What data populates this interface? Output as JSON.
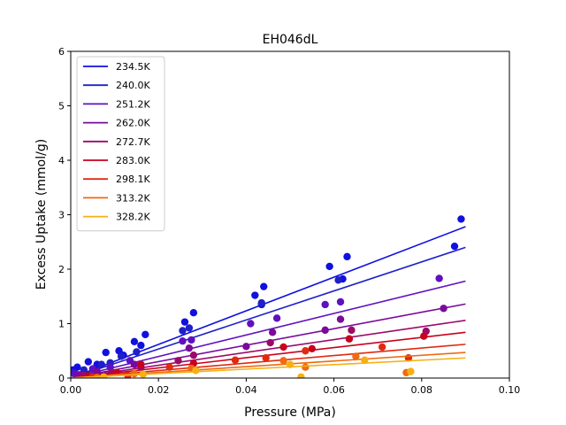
{
  "chart_data": {
    "type": "scatter",
    "title": "EH046dL",
    "xlabel": "Pressure (MPa)",
    "ylabel": "Excess Uptake (mmol/g)",
    "xlim": [
      0,
      0.1
    ],
    "ylim": [
      0,
      6
    ],
    "xticks": [
      0,
      0.02,
      0.04,
      0.06,
      0.08,
      0.1
    ],
    "xtick_labels": [
      "0.00",
      "0.02",
      "0.04",
      "0.06",
      "0.08",
      "0.10"
    ],
    "yticks": [
      0,
      1,
      2,
      3,
      4,
      5,
      6
    ],
    "ytick_labels": [
      "0",
      "1",
      "2",
      "3",
      "4",
      "5",
      "6"
    ],
    "grid": false,
    "legend_position": "top-left",
    "series": [
      {
        "name": "234.5K",
        "color": "#1010e0",
        "fit_end": [
          0.09,
          2.78
        ],
        "points": [
          [
            0.0005,
            0.15
          ],
          [
            0.0015,
            0.2
          ],
          [
            0.004,
            0.3
          ],
          [
            0.006,
            0.25
          ],
          [
            0.008,
            0.47
          ],
          [
            0.011,
            0.5
          ],
          [
            0.012,
            0.42
          ],
          [
            0.0145,
            0.67
          ],
          [
            0.016,
            0.6
          ],
          [
            0.017,
            0.8
          ],
          [
            0.026,
            1.03
          ],
          [
            0.028,
            1.2
          ],
          [
            0.042,
            1.52
          ],
          [
            0.0435,
            1.35
          ],
          [
            0.044,
            1.68
          ],
          [
            0.059,
            2.05
          ],
          [
            0.062,
            1.82
          ],
          [
            0.063,
            2.23
          ],
          [
            0.0875,
            2.42
          ],
          [
            0.089,
            2.92
          ]
        ]
      },
      {
        "name": "240.0K",
        "color": "#2020c8",
        "fit_end": [
          0.09,
          2.4
        ],
        "points": [
          [
            0.0005,
            0.1
          ],
          [
            0.003,
            0.15
          ],
          [
            0.007,
            0.25
          ],
          [
            0.009,
            0.28
          ],
          [
            0.0115,
            0.4
          ],
          [
            0.015,
            0.48
          ],
          [
            0.0255,
            0.87
          ],
          [
            0.027,
            0.92
          ],
          [
            0.0435,
            1.38
          ],
          [
            0.061,
            1.8
          ]
        ]
      },
      {
        "name": "251.2K",
        "color": "#6010c0",
        "fit_end": [
          0.09,
          1.78
        ],
        "points": [
          [
            0.001,
            0.08
          ],
          [
            0.005,
            0.17
          ],
          [
            0.009,
            0.2
          ],
          [
            0.0135,
            0.32
          ],
          [
            0.0255,
            0.68
          ],
          [
            0.0275,
            0.7
          ],
          [
            0.041,
            1.0
          ],
          [
            0.047,
            1.1
          ],
          [
            0.058,
            1.35
          ],
          [
            0.0615,
            1.4
          ],
          [
            0.084,
            1.83
          ]
        ]
      },
      {
        "name": "262.0K",
        "color": "#7a0a9a",
        "fit_end": [
          0.09,
          1.36
        ],
        "points": [
          [
            0.002,
            0.06
          ],
          [
            0.006,
            0.12
          ],
          [
            0.0145,
            0.25
          ],
          [
            0.027,
            0.55
          ],
          [
            0.04,
            0.58
          ],
          [
            0.046,
            0.84
          ],
          [
            0.058,
            0.88
          ],
          [
            0.0615,
            1.08
          ],
          [
            0.085,
            1.28
          ]
        ]
      },
      {
        "name": "272.7K",
        "color": "#9a0a6a",
        "fit_end": [
          0.09,
          1.06
        ],
        "points": [
          [
            0.003,
            0.05
          ],
          [
            0.0095,
            0.1
          ],
          [
            0.016,
            0.2
          ],
          [
            0.0245,
            0.32
          ],
          [
            0.028,
            0.42
          ],
          [
            0.0455,
            0.65
          ],
          [
            0.064,
            0.88
          ],
          [
            0.081,
            0.86
          ]
        ]
      },
      {
        "name": "283.0K",
        "color": "#c8001c",
        "fit_end": [
          0.09,
          0.84
        ],
        "points": [
          [
            0.004,
            0.04
          ],
          [
            0.0105,
            0.1
          ],
          [
            0.016,
            0.25
          ],
          [
            0.028,
            0.27
          ],
          [
            0.0485,
            0.57
          ],
          [
            0.055,
            0.54
          ],
          [
            0.0635,
            0.72
          ],
          [
            0.0805,
            0.77
          ]
        ]
      },
      {
        "name": "298.1K",
        "color": "#e02a10",
        "fit_end": [
          0.09,
          0.62
        ],
        "points": [
          [
            0.005,
            0.02
          ],
          [
            0.013,
            0.05
          ],
          [
            0.0225,
            0.2
          ],
          [
            0.0375,
            0.33
          ],
          [
            0.0445,
            0.37
          ],
          [
            0.0535,
            0.5
          ],
          [
            0.071,
            0.57
          ],
          [
            0.077,
            0.37
          ]
        ]
      },
      {
        "name": "313.2K",
        "color": "#f06a10",
        "fit_end": [
          0.09,
          0.47
        ],
        "points": [
          [
            0.006,
            0.01
          ],
          [
            0.0145,
            0.08
          ],
          [
            0.0275,
            0.18
          ],
          [
            0.0485,
            0.32
          ],
          [
            0.0535,
            0.2
          ],
          [
            0.065,
            0.4
          ],
          [
            0.0765,
            0.1
          ]
        ]
      },
      {
        "name": "328.2K",
        "color": "#f5b015",
        "fit_end": [
          0.09,
          0.37
        ],
        "points": [
          [
            0.0075,
            0.02
          ],
          [
            0.0165,
            0.07
          ],
          [
            0.0285,
            0.14
          ],
          [
            0.05,
            0.25
          ],
          [
            0.0525,
            0.02
          ],
          [
            0.067,
            0.33
          ],
          [
            0.0775,
            0.12
          ]
        ]
      }
    ]
  }
}
